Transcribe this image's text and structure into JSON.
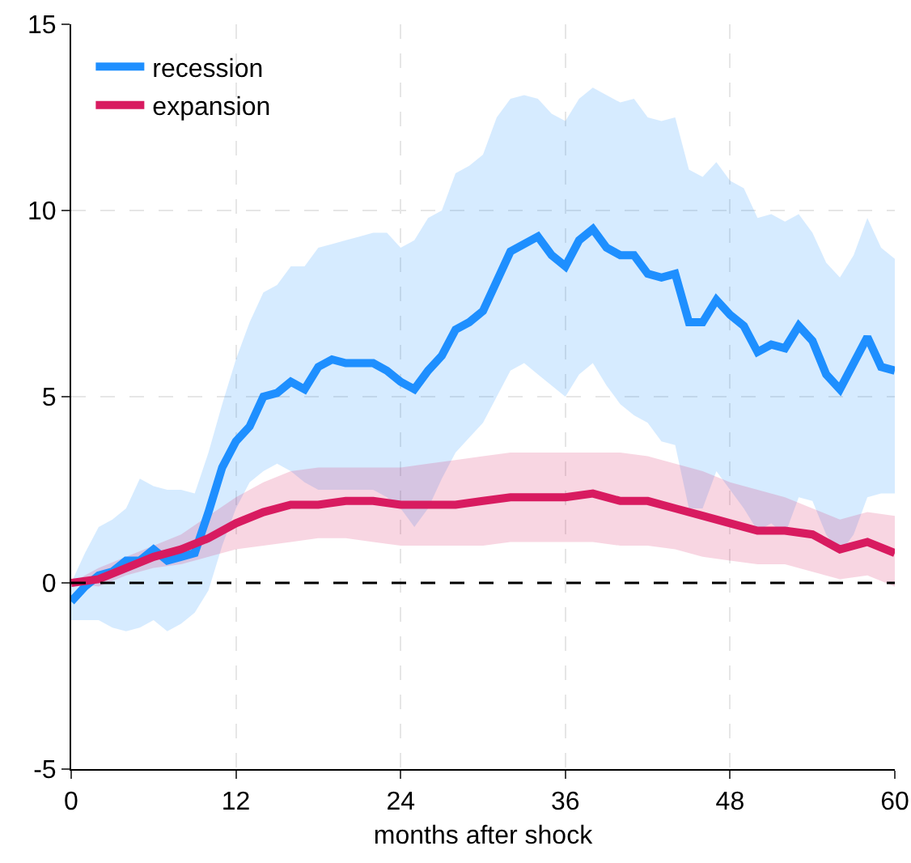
{
  "chart_data": {
    "type": "line",
    "xlabel": "months after shock",
    "xlim": [
      0,
      60
    ],
    "xticks": [
      0,
      12,
      24,
      36,
      48,
      60
    ],
    "ylim": [
      -5,
      15
    ],
    "yticks": [
      -5,
      0,
      5,
      10,
      15
    ],
    "grid": true,
    "legend": "top left",
    "marker": "none",
    "line_style": "solid",
    "ref_lines": [
      {
        "axis": "y",
        "value": 0,
        "color": "#000000",
        "line_style": "dashed"
      }
    ],
    "series": [
      {
        "name": "recession",
        "color": "#1e8fff",
        "x": [
          0,
          1,
          2,
          3,
          4,
          5,
          6,
          7,
          8,
          9,
          10,
          11,
          12,
          13,
          14,
          15,
          16,
          17,
          18,
          19,
          20,
          21,
          22,
          23,
          24,
          25,
          26,
          27,
          28,
          29,
          30,
          31,
          32,
          33,
          34,
          35,
          36,
          37,
          38,
          39,
          40,
          41,
          42,
          43,
          44,
          45,
          46,
          47,
          48,
          49,
          50,
          51,
          52,
          53,
          54,
          55,
          56,
          57,
          58,
          59,
          60
        ],
        "values": [
          -0.5,
          -0.1,
          0.2,
          0.3,
          0.6,
          0.6,
          0.9,
          0.6,
          0.7,
          0.8,
          1.9,
          3.1,
          3.8,
          4.2,
          5.0,
          5.1,
          5.4,
          5.2,
          5.8,
          6.0,
          5.9,
          5.9,
          5.9,
          5.7,
          5.4,
          5.2,
          5.7,
          6.1,
          6.8,
          7.0,
          7.3,
          8.1,
          8.9,
          9.1,
          9.3,
          8.8,
          8.5,
          9.2,
          9.5,
          9.0,
          8.8,
          8.8,
          8.3,
          8.2,
          8.3,
          7.0,
          7.0,
          7.6,
          7.2,
          6.9,
          6.2,
          6.4,
          6.3,
          6.9,
          6.5,
          5.6,
          5.2,
          5.9,
          6.6,
          5.8,
          5.7
        ],
        "upper": [
          0,
          0.8,
          1.5,
          1.7,
          2.0,
          2.8,
          2.6,
          2.5,
          2.5,
          2.4,
          3.5,
          4.8,
          6.0,
          7.0,
          7.8,
          8.0,
          8.5,
          8.5,
          9.0,
          9.1,
          9.2,
          9.3,
          9.4,
          9.4,
          9.0,
          9.2,
          9.8,
          10.0,
          11.0,
          11.2,
          11.5,
          12.5,
          13.0,
          13.1,
          13.0,
          12.6,
          12.4,
          13.0,
          13.3,
          13.1,
          12.9,
          13.0,
          12.5,
          12.4,
          12.5,
          11.1,
          10.9,
          11.3,
          10.8,
          10.6,
          9.8,
          9.9,
          9.7,
          9.9,
          9.4,
          8.6,
          8.2,
          8.8,
          9.8,
          9.0,
          8.7
        ],
        "lower": [
          -1.0,
          -1.0,
          -1.0,
          -1.2,
          -1.3,
          -1.2,
          -1.0,
          -1.3,
          -1.1,
          -0.8,
          -0.2,
          1.0,
          2.0,
          2.7,
          3.0,
          3.2,
          3.0,
          2.7,
          2.5,
          2.5,
          2.5,
          2.5,
          2.5,
          2.3,
          2.0,
          1.5,
          2.0,
          2.8,
          3.5,
          3.9,
          4.3,
          5.0,
          5.7,
          5.9,
          5.6,
          5.3,
          5.0,
          5.6,
          5.9,
          5.3,
          4.8,
          4.5,
          4.3,
          3.8,
          3.7,
          2.0,
          2.0,
          3.0,
          2.5,
          2.0,
          1.4,
          1.6,
          1.3,
          2.3,
          2.2,
          1.3,
          0.8,
          1.3,
          2.3,
          2.4,
          2.4
        ]
      },
      {
        "name": "expansion",
        "color": "#d81b60",
        "x": [
          0,
          2,
          4,
          6,
          8,
          10,
          12,
          14,
          16,
          18,
          20,
          22,
          24,
          26,
          28,
          30,
          32,
          34,
          36,
          38,
          40,
          42,
          44,
          46,
          48,
          50,
          52,
          54,
          56,
          58,
          60
        ],
        "values": [
          0,
          0.1,
          0.4,
          0.7,
          0.9,
          1.2,
          1.6,
          1.9,
          2.1,
          2.1,
          2.2,
          2.2,
          2.1,
          2.1,
          2.1,
          2.2,
          2.3,
          2.3,
          2.3,
          2.4,
          2.2,
          2.2,
          2.0,
          1.8,
          1.6,
          1.4,
          1.4,
          1.3,
          0.9,
          1.1,
          0.8
        ],
        "upper": [
          0,
          0.4,
          0.7,
          1.0,
          1.3,
          1.8,
          2.3,
          2.7,
          3.0,
          3.1,
          3.1,
          3.1,
          3.1,
          3.2,
          3.3,
          3.4,
          3.5,
          3.5,
          3.5,
          3.5,
          3.5,
          3.4,
          3.2,
          3.0,
          2.7,
          2.5,
          2.3,
          2.0,
          1.7,
          1.9,
          1.8
        ],
        "lower": [
          0,
          -0.1,
          0.2,
          0.4,
          0.5,
          0.7,
          0.9,
          1.0,
          1.1,
          1.2,
          1.2,
          1.1,
          1.0,
          1.0,
          1.0,
          1.0,
          1.1,
          1.1,
          1.1,
          1.1,
          1.0,
          1.0,
          0.9,
          0.7,
          0.6,
          0.5,
          0.5,
          0.3,
          0.1,
          0.2,
          -0.1
        ]
      }
    ]
  }
}
